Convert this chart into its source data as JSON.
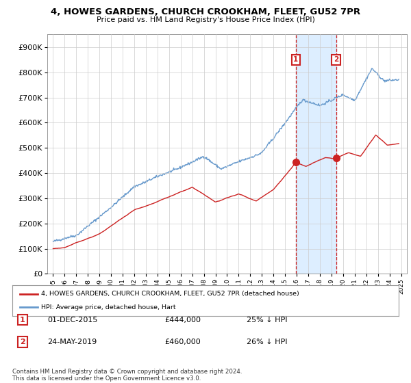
{
  "title": "4, HOWES GARDENS, CHURCH CROOKHAM, FLEET, GU52 7PR",
  "subtitle": "Price paid vs. HM Land Registry's House Price Index (HPI)",
  "legend_line1": "4, HOWES GARDENS, CHURCH CROOKHAM, FLEET, GU52 7PR (detached house)",
  "legend_line2": "HPI: Average price, detached house, Hart",
  "annotation1_label": "1",
  "annotation1_date": "01-DEC-2015",
  "annotation1_price": "£444,000",
  "annotation1_pct": "25% ↓ HPI",
  "annotation2_label": "2",
  "annotation2_date": "24-MAY-2019",
  "annotation2_price": "£460,000",
  "annotation2_pct": "26% ↓ HPI",
  "footer": "Contains HM Land Registry data © Crown copyright and database right 2024.\nThis data is licensed under the Open Government Licence v3.0.",
  "hpi_color": "#6699cc",
  "price_color": "#cc2222",
  "vline_color": "#cc2222",
  "background_color": "#ffffff",
  "grid_color": "#cccccc",
  "shade_color": "#ddeeff",
  "ylim": [
    0,
    950000
  ],
  "yticks": [
    0,
    100000,
    200000,
    300000,
    400000,
    500000,
    600000,
    700000,
    800000,
    900000
  ],
  "sale1_year": 2015.92,
  "sale1_price": 444000,
  "sale2_year": 2019.39,
  "sale2_price": 460000,
  "xmin": 1994.5,
  "xmax": 2025.5
}
